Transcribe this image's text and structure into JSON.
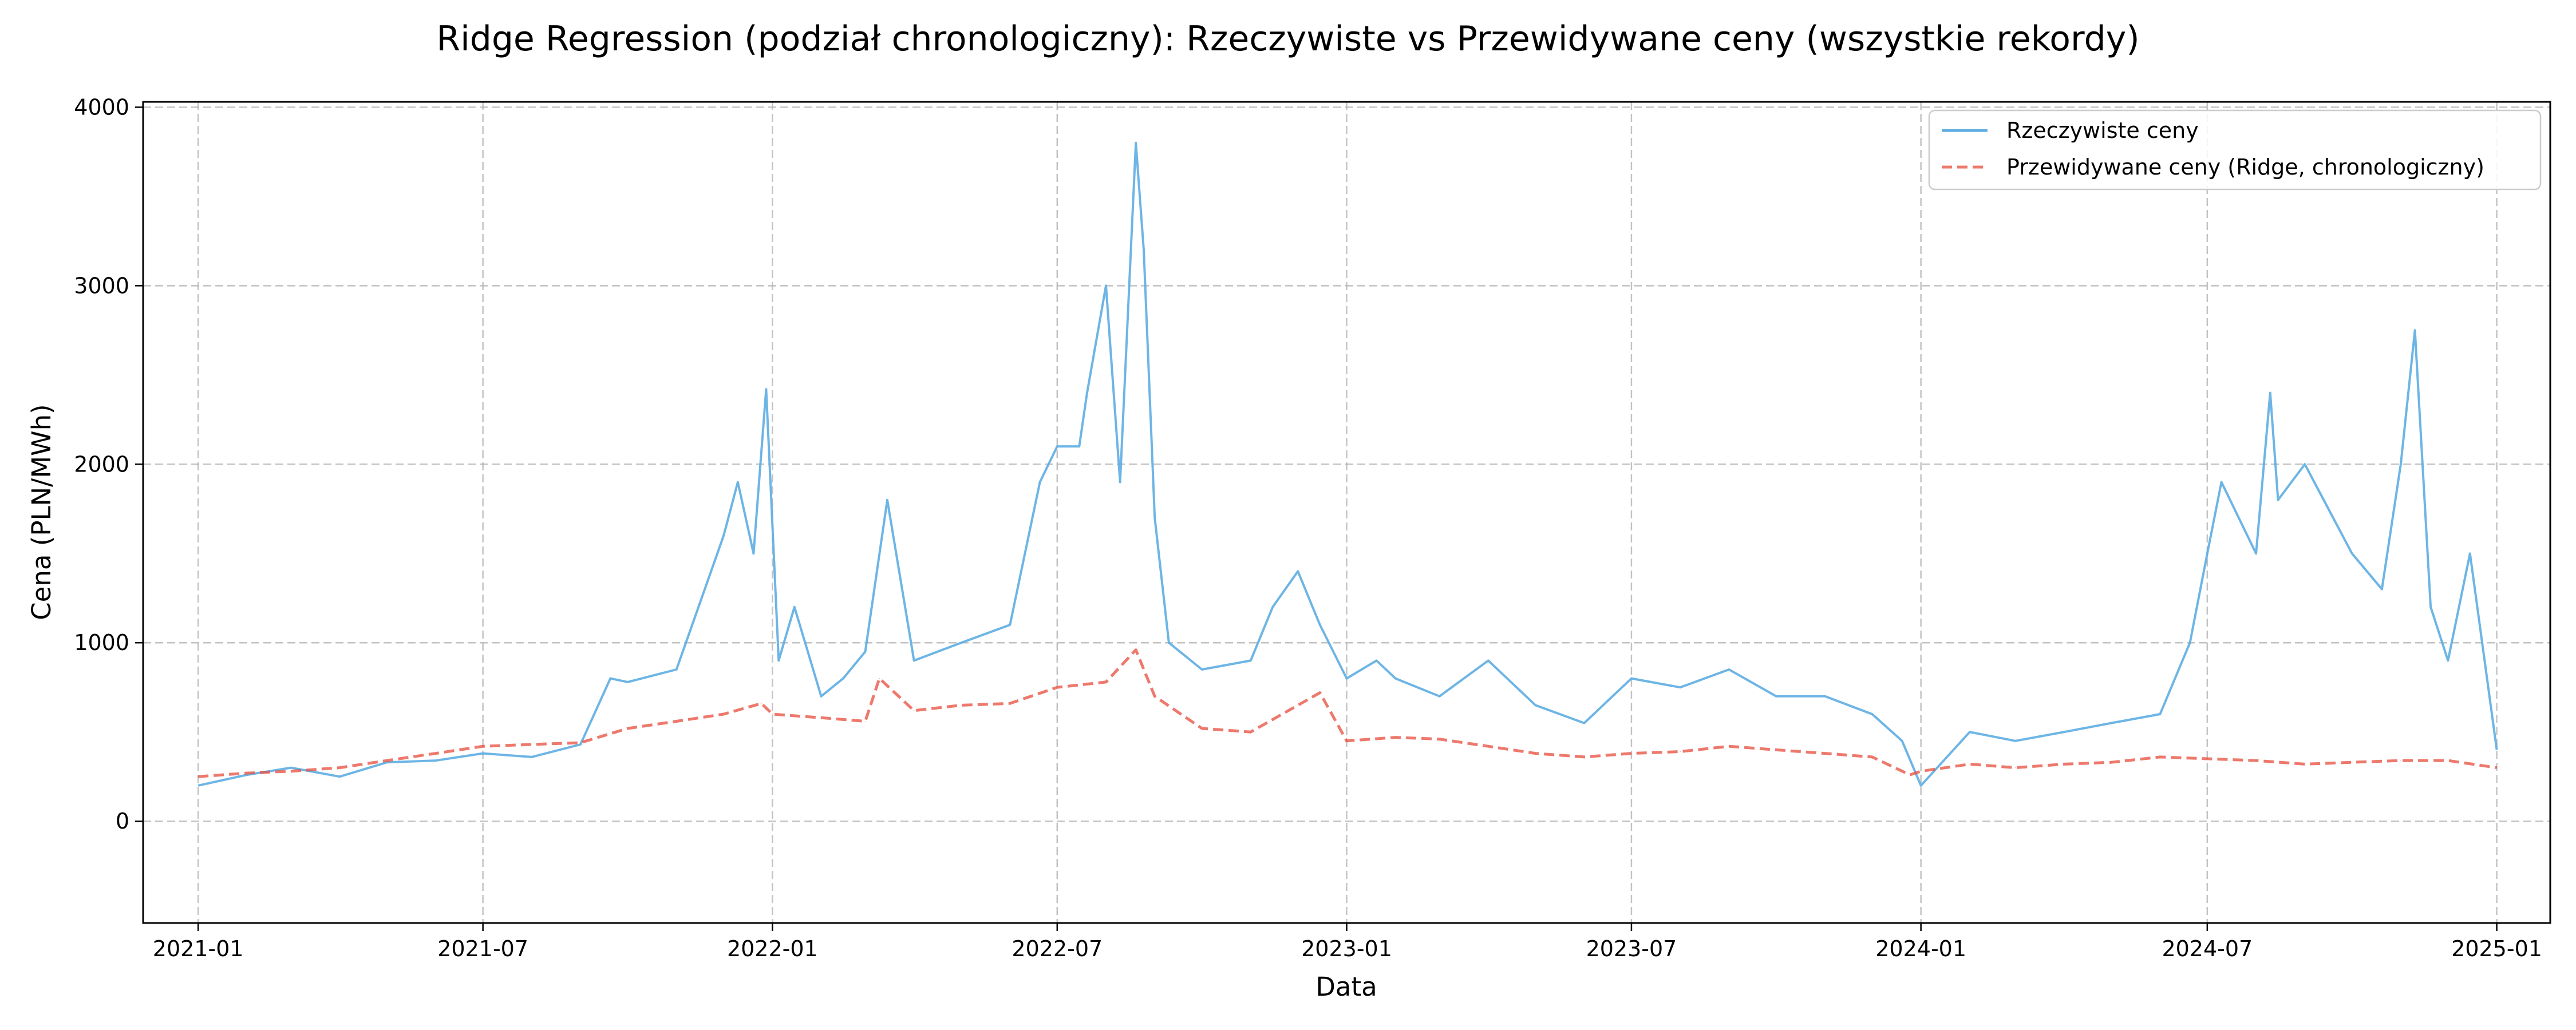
{
  "chart_data": {
    "type": "line",
    "title": "Ridge Regression (podział chronologiczny): Rzeczywiste vs Przewidywane ceny (wszystkie rekordy)",
    "xlabel": "Data",
    "ylabel": "Cena (PLN/MWh)",
    "x_range": [
      "2020-11-27",
      "2025-02-04"
    ],
    "ylim": [
      -570,
      4030
    ],
    "x_ticks": [
      "2021-01",
      "2021-07",
      "2022-01",
      "2022-07",
      "2023-01",
      "2023-07",
      "2024-01",
      "2024-07",
      "2025-01"
    ],
    "y_ticks": [
      0,
      1000,
      2000,
      3000,
      4000
    ],
    "grid": true,
    "legend_position": "top-right",
    "series": [
      {
        "name": "Rzeczywiste ceny",
        "color": "#5dade2",
        "style": "solid",
        "x": [
          "2021-01-01",
          "2021-02-01",
          "2021-03-01",
          "2021-04-01",
          "2021-05-01",
          "2021-06-01",
          "2021-07-01",
          "2021-08-01",
          "2021-09-01",
          "2021-09-20",
          "2021-10-01",
          "2021-11-01",
          "2021-11-15",
          "2021-12-01",
          "2021-12-10",
          "2021-12-20",
          "2021-12-28",
          "2022-01-05",
          "2022-01-15",
          "2022-02-01",
          "2022-02-15",
          "2022-03-01",
          "2022-03-15",
          "2022-04-01",
          "2022-05-01",
          "2022-06-01",
          "2022-06-20",
          "2022-07-01",
          "2022-07-15",
          "2022-07-20",
          "2022-08-01",
          "2022-08-10",
          "2022-08-20",
          "2022-08-25",
          "2022-09-01",
          "2022-09-10",
          "2022-10-01",
          "2022-11-01",
          "2022-11-15",
          "2022-12-01",
          "2022-12-15",
          "2023-01-01",
          "2023-01-20",
          "2023-02-01",
          "2023-03-01",
          "2023-04-01",
          "2023-05-01",
          "2023-06-01",
          "2023-07-01",
          "2023-08-01",
          "2023-09-01",
          "2023-10-01",
          "2023-11-01",
          "2023-12-01",
          "2023-12-20",
          "2024-01-01",
          "2024-02-01",
          "2024-03-01",
          "2024-04-01",
          "2024-05-01",
          "2024-06-01",
          "2024-06-20",
          "2024-07-01",
          "2024-07-10",
          "2024-08-01",
          "2024-08-10",
          "2024-08-15",
          "2024-09-01",
          "2024-10-01",
          "2024-10-20",
          "2024-11-01",
          "2024-11-10",
          "2024-11-20",
          "2024-12-01",
          "2024-12-15",
          "2025-01-01"
        ],
        "y": [
          200,
          260,
          300,
          250,
          330,
          340,
          380,
          360,
          430,
          800,
          780,
          850,
          1200,
          1600,
          1900,
          1500,
          2420,
          900,
          1200,
          700,
          800,
          950,
          1800,
          900,
          1000,
          1100,
          1900,
          2100,
          2100,
          2400,
          3000,
          1900,
          3800,
          3200,
          1700,
          1000,
          850,
          900,
          1200,
          1400,
          1100,
          800,
          900,
          800,
          700,
          900,
          650,
          550,
          800,
          750,
          850,
          700,
          700,
          600,
          450,
          200,
          500,
          450,
          500,
          550,
          600,
          1000,
          1500,
          1900,
          1500,
          2400,
          1800,
          2000,
          1500,
          1300,
          2000,
          2750,
          1200,
          900,
          1500,
          400
        ]
      },
      {
        "name": "Przewidywane ceny (Ridge, chronologiczny)",
        "color": "#e74c3c",
        "style": "dashed",
        "x": [
          "2021-01-01",
          "2021-02-01",
          "2021-03-01",
          "2021-04-01",
          "2021-05-01",
          "2021-06-01",
          "2021-07-01",
          "2021-08-01",
          "2021-09-01",
          "2021-10-01",
          "2021-11-01",
          "2021-12-01",
          "2021-12-25",
          "2022-01-01",
          "2022-02-01",
          "2022-03-01",
          "2022-03-10",
          "2022-04-01",
          "2022-05-01",
          "2022-06-01",
          "2022-07-01",
          "2022-08-01",
          "2022-08-20",
          "2022-09-01",
          "2022-10-01",
          "2022-11-01",
          "2022-12-01",
          "2022-12-15",
          "2023-01-01",
          "2023-02-01",
          "2023-03-01",
          "2023-04-01",
          "2023-05-01",
          "2023-06-01",
          "2023-07-01",
          "2023-08-01",
          "2023-09-01",
          "2023-10-01",
          "2023-11-01",
          "2023-12-01",
          "2023-12-25",
          "2024-01-01",
          "2024-02-01",
          "2024-03-01",
          "2024-04-01",
          "2024-05-01",
          "2024-06-01",
          "2024-07-01",
          "2024-08-01",
          "2024-09-01",
          "2024-10-01",
          "2024-11-01",
          "2024-12-01",
          "2025-01-01"
        ],
        "y": [
          250,
          270,
          280,
          300,
          340,
          380,
          420,
          430,
          440,
          520,
          560,
          600,
          660,
          600,
          580,
          560,
          800,
          620,
          650,
          660,
          750,
          780,
          960,
          700,
          520,
          500,
          650,
          720,
          450,
          470,
          460,
          420,
          380,
          360,
          380,
          390,
          420,
          400,
          380,
          360,
          260,
          280,
          320,
          300,
          320,
          330,
          360,
          350,
          340,
          320,
          330,
          340,
          340,
          300
        ]
      }
    ]
  }
}
